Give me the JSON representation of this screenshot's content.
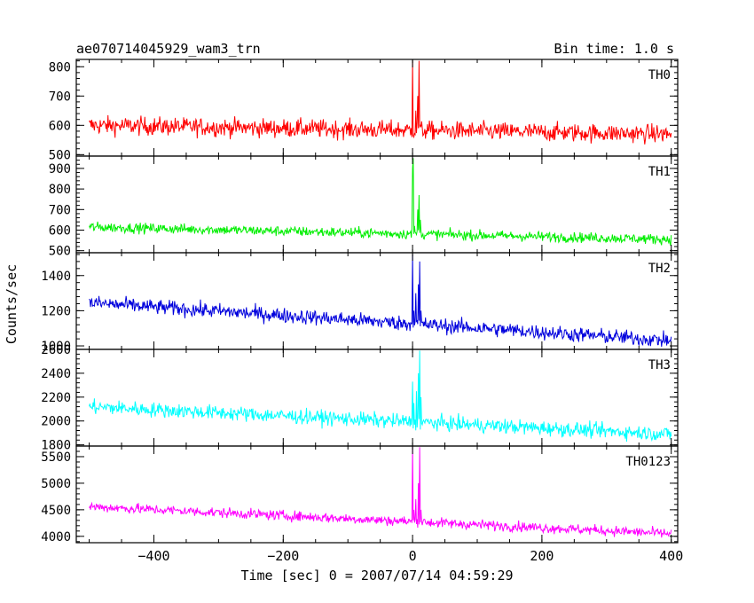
{
  "title_left": "ae070714045929_wam3_trn",
  "title_right": "Bin time: 1.0 s",
  "chart_data": {
    "type": "line",
    "xlabel": "Time [sec] 0 = 2007/07/14 04:59:29",
    "ylabel": "Counts/sec",
    "xlim": [
      -520,
      410
    ],
    "x_ticks": [
      -400,
      -200,
      0,
      200,
      400
    ],
    "x_tick_labels": [
      "−400",
      "−200",
      "0",
      "200",
      "400"
    ],
    "x_range_data": [
      -500,
      400
    ],
    "panels": [
      {
        "name": "TH0",
        "color": "#ff0000",
        "ylim": [
          495,
          825
        ],
        "y_ticks": [
          500,
          600,
          700,
          800
        ],
        "y_tick_labels": [
          "500",
          "600",
          "700",
          "800"
        ],
        "baseline_start": 600,
        "baseline_end": 570,
        "noise": 28,
        "spikes": [
          {
            "x": 0,
            "y": 820
          },
          {
            "x": 2,
            "y": 560
          },
          {
            "x": 5,
            "y": 650
          },
          {
            "x": 8,
            "y": 700
          },
          {
            "x": 10,
            "y": 820
          },
          {
            "x": 12,
            "y": 600
          }
        ]
      },
      {
        "name": "TH1",
        "color": "#00ee00",
        "ylim": [
          490,
          960
        ],
        "y_ticks": [
          500,
          600,
          700,
          800,
          900
        ],
        "y_tick_labels": [
          "500",
          "600",
          "700",
          "800",
          "900"
        ],
        "baseline_start": 615,
        "baseline_end": 555,
        "noise": 22,
        "spikes": [
          {
            "x": 0,
            "y": 900
          },
          {
            "x": 1,
            "y": 950
          },
          {
            "x": 3,
            "y": 620
          },
          {
            "x": 8,
            "y": 700
          },
          {
            "x": 10,
            "y": 770
          },
          {
            "x": 12,
            "y": 650
          }
        ]
      },
      {
        "name": "TH2",
        "color": "#0000dd",
        "ylim": [
          980,
          1530
        ],
        "y_ticks": [
          1000,
          1200,
          1400
        ],
        "y_tick_labels": [
          "1000",
          "1200",
          "1400"
        ],
        "baseline_start": 1245,
        "baseline_end": 1030,
        "noise": 38,
        "spikes": [
          {
            "x": 0,
            "y": 1520
          },
          {
            "x": 2,
            "y": 1200
          },
          {
            "x": 5,
            "y": 1300
          },
          {
            "x": 9,
            "y": 1350
          },
          {
            "x": 11,
            "y": 1480
          },
          {
            "x": 13,
            "y": 1200
          }
        ]
      },
      {
        "name": "TH3",
        "color": "#00ffff",
        "ylim": [
          1790,
          2600
        ],
        "y_ticks": [
          1800,
          2000,
          2200,
          2400,
          2600
        ],
        "y_tick_labels": [
          "1800",
          "2000",
          "2200",
          "2400",
          "2600"
        ],
        "baseline_start": 2120,
        "baseline_end": 1890,
        "noise": 55,
        "spikes": [
          {
            "x": 0,
            "y": 2330
          },
          {
            "x": 2,
            "y": 2150
          },
          {
            "x": 6,
            "y": 2250
          },
          {
            "x": 9,
            "y": 2400
          },
          {
            "x": 11,
            "y": 2590
          },
          {
            "x": 13,
            "y": 2200
          }
        ]
      },
      {
        "name": "TH0123",
        "color": "#ff00ff",
        "ylim": [
          3880,
          5700
        ],
        "y_ticks": [
          4000,
          4500,
          5000,
          5500
        ],
        "y_tick_labels": [
          "4000",
          "4500",
          "5000",
          "5500"
        ],
        "baseline_start": 4560,
        "baseline_end": 4050,
        "noise": 85,
        "spikes": [
          {
            "x": 0,
            "y": 5680
          },
          {
            "x": 2,
            "y": 4500
          },
          {
            "x": 5,
            "y": 4700
          },
          {
            "x": 9,
            "y": 5000
          },
          {
            "x": 11,
            "y": 5680
          },
          {
            "x": 13,
            "y": 4500
          }
        ]
      }
    ]
  }
}
